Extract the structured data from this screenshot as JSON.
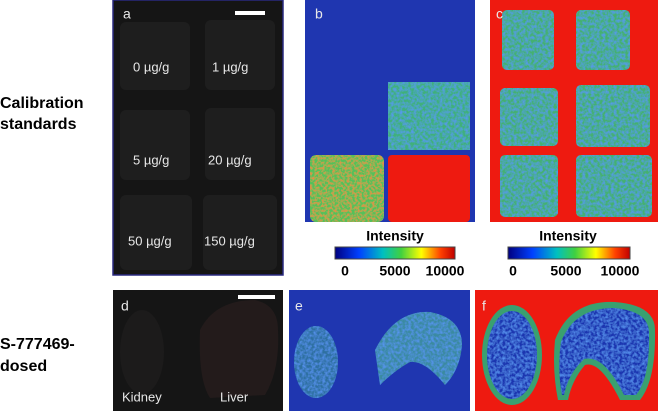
{
  "left_labels": {
    "calibration": [
      "Calibration",
      "standards"
    ],
    "dosed": [
      "S-777469-",
      "dosed"
    ]
  },
  "panels": {
    "a": {
      "letter": "a",
      "labels": [
        "0 µg/g",
        "1 µg/g",
        "5 µg/g",
        "20 µg/g",
        "50 µg/g",
        "150 µg/g"
      ]
    },
    "b": {
      "letter": "b"
    },
    "c": {
      "letter": "c"
    },
    "d": {
      "letter": "d",
      "labels": [
        "Kidney",
        "Liver"
      ]
    },
    "e": {
      "letter": "e"
    },
    "f": {
      "letter": "f"
    }
  },
  "colorbars": [
    {
      "title": "Intensity",
      "ticks": [
        0,
        5000,
        10000
      ]
    },
    {
      "title": "Intensity",
      "ticks": [
        0,
        5000,
        10000
      ]
    }
  ]
}
